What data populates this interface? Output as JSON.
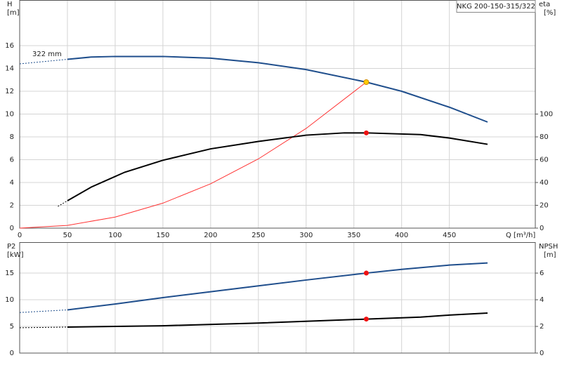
{
  "chart_data": [
    {
      "type": "line",
      "title": "NKG 200-150-315/322",
      "x_label": "Q [m³/h]",
      "y_label": "H",
      "y_unit": "[m]",
      "y2_label": "eta",
      "y2_unit": "[%]",
      "annotation": "322 mm",
      "xlim": [
        0,
        540
      ],
      "xticks": [
        0,
        50,
        100,
        150,
        200,
        250,
        300,
        350,
        400,
        450
      ],
      "ylim": [
        0,
        20
      ],
      "yticks": [
        0,
        2,
        4,
        6,
        8,
        10,
        12,
        14,
        16
      ],
      "y2lim": [
        0,
        200
      ],
      "y2ticks": [
        0,
        20,
        40,
        60,
        80,
        100
      ],
      "grid": true,
      "series": [
        {
          "color": "#1f4e8c",
          "dash": true,
          "axis": "y",
          "x": [
            0,
            50
          ],
          "values": [
            14.4,
            14.8
          ]
        },
        {
          "color": "#1f4e8c",
          "dash": false,
          "axis": "y",
          "x": [
            50,
            75,
            100,
            150,
            200,
            250,
            300,
            363,
            400,
            450,
            490
          ],
          "values": [
            14.8,
            15.0,
            15.05,
            15.05,
            14.9,
            14.5,
            13.9,
            12.8,
            12.0,
            10.6,
            9.3
          ]
        },
        {
          "color": "#ff3333",
          "dash": false,
          "axis": "y",
          "x": [
            0,
            50,
            100,
            150,
            200,
            250,
            300,
            363
          ],
          "values": [
            0,
            0.24,
            0.97,
            2.19,
            3.89,
            6.07,
            8.74,
            12.8
          ]
        },
        {
          "color": "#000000",
          "dash": true,
          "axis": "y2",
          "x": [
            40,
            50
          ],
          "values": [
            19,
            24
          ]
        },
        {
          "color": "#000000",
          "dash": false,
          "axis": "y2",
          "x": [
            50,
            75,
            110,
            150,
            200,
            250,
            300,
            340,
            363,
            420,
            450,
            490
          ],
          "values": [
            24,
            36,
            49,
            59.5,
            69.5,
            76,
            81.5,
            83.5,
            83.5,
            82,
            79,
            73.5
          ]
        }
      ],
      "markers": [
        {
          "x": 363,
          "y": 12.8,
          "axis": "y",
          "color": "#ffcc00"
        },
        {
          "x": 363,
          "y": 83.5,
          "axis": "y2",
          "color": "#ee1111"
        }
      ]
    },
    {
      "type": "line",
      "y_label": "P2",
      "y_unit": "[kW]",
      "y2_label": "NPSH",
      "y2_unit": "[m]",
      "xlim": [
        0,
        540
      ],
      "ylim": [
        0,
        20.8
      ],
      "yticks": [
        0,
        5,
        10,
        15
      ],
      "y2lim": [
        0,
        8.32
      ],
      "y2ticks": [
        0,
        2,
        4,
        6
      ],
      "grid": true,
      "series": [
        {
          "color": "#1f4e8c",
          "dash": true,
          "axis": "y",
          "x": [
            0,
            50
          ],
          "values": [
            7.6,
            8.1
          ]
        },
        {
          "color": "#1f4e8c",
          "dash": false,
          "axis": "y",
          "x": [
            50,
            100,
            150,
            200,
            250,
            300,
            363,
            400,
            450,
            490
          ],
          "values": [
            8.1,
            9.2,
            10.4,
            11.5,
            12.6,
            13.7,
            15.0,
            15.7,
            16.5,
            16.9
          ]
        },
        {
          "color": "#000000",
          "dash": true,
          "axis": "y2",
          "x": [
            0,
            50
          ],
          "values": [
            1.9,
            1.95
          ]
        },
        {
          "color": "#000000",
          "dash": false,
          "axis": "y2",
          "x": [
            50,
            150,
            250,
            363,
            420,
            450,
            490
          ],
          "values": [
            1.95,
            2.05,
            2.25,
            2.55,
            2.7,
            2.85,
            3.0
          ]
        }
      ],
      "markers": [
        {
          "x": 363,
          "y": 15.0,
          "axis": "y",
          "color": "#ee1111"
        },
        {
          "x": 363,
          "y": 2.55,
          "axis": "y2",
          "color": "#ee1111"
        }
      ]
    }
  ]
}
